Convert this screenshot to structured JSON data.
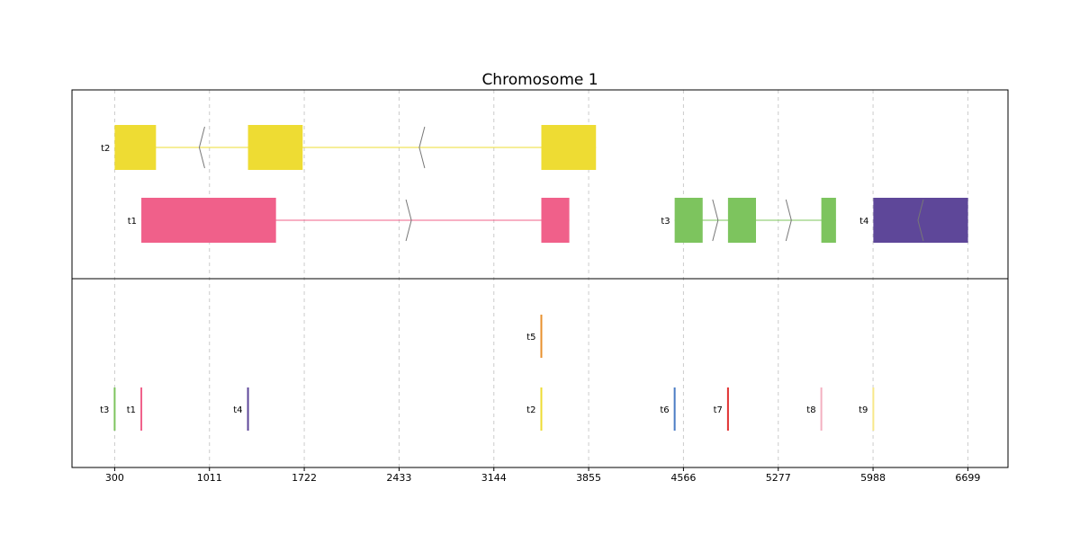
{
  "chart_data": {
    "type": "genome-track",
    "title": "Chromosome 1",
    "xlabel": "",
    "ylabel": "",
    "xlim": [
      -20,
      7000
    ],
    "x_ticks": [
      300,
      1011,
      1722,
      2433,
      3144,
      3855,
      4566,
      5277,
      5988,
      6699
    ],
    "x_tick_labels": [
      "300",
      "1011",
      "1722",
      "2433",
      "3144",
      "3855",
      "4566",
      "5277",
      "5988",
      "6699"
    ],
    "grid": "vertical dashed",
    "transcripts": [
      {
        "name": "t2",
        "row": 1,
        "strand": "-",
        "color": "#eedc33",
        "exons": [
          [
            300,
            610
          ],
          [
            1300,
            1710
          ],
          [
            3500,
            3910
          ]
        ]
      },
      {
        "name": "t1",
        "row": 2,
        "strand": "+",
        "color": "#f0608a",
        "exons": [
          [
            500,
            1510
          ],
          [
            3500,
            3710
          ]
        ]
      },
      {
        "name": "t3",
        "row": 2,
        "strand": "+",
        "color": "#7dc45e",
        "exons": [
          [
            4500,
            4710
          ],
          [
            4900,
            5110
          ],
          [
            5600,
            5710
          ]
        ]
      },
      {
        "name": "t4",
        "row": 2,
        "strand": "-",
        "color": "#5e4799",
        "exons": [
          [
            5990,
            6700
          ]
        ]
      }
    ],
    "sites": [
      {
        "name": "t5",
        "row": 1,
        "position": 3500,
        "color": "#e8902e"
      },
      {
        "name": "t3",
        "row": 2,
        "position": 300,
        "color": "#7dc45e"
      },
      {
        "name": "t1",
        "row": 2,
        "position": 500,
        "color": "#f0608a"
      },
      {
        "name": "t4",
        "row": 2,
        "position": 1300,
        "color": "#5e4799"
      },
      {
        "name": "t2",
        "row": 2,
        "position": 3500,
        "color": "#eedc33"
      },
      {
        "name": "t6",
        "row": 2,
        "position": 4500,
        "color": "#4a7cc4"
      },
      {
        "name": "t7",
        "row": 2,
        "position": 4900,
        "color": "#e03030"
      },
      {
        "name": "t8",
        "row": 2,
        "position": 5600,
        "color": "#f4b0c0"
      },
      {
        "name": "t9",
        "row": 2,
        "position": 5990,
        "color": "#f8e88a"
      }
    ]
  }
}
